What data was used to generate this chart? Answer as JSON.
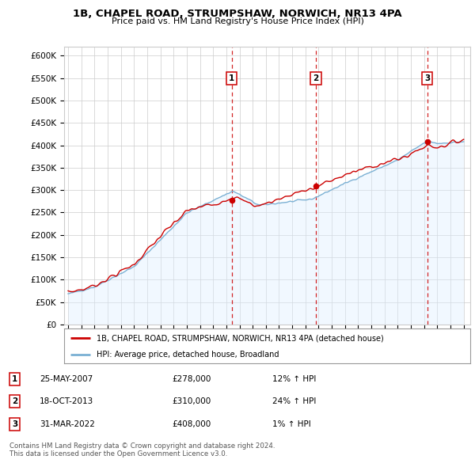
{
  "title1": "1B, CHAPEL ROAD, STRUMPSHAW, NORWICH, NR13 4PA",
  "title2": "Price paid vs. HM Land Registry's House Price Index (HPI)",
  "sale_year_vals": [
    2007.4167,
    2013.7917,
    2022.25
  ],
  "sale_prices": [
    278000,
    310000,
    408000
  ],
  "sale_labels": [
    "1",
    "2",
    "3"
  ],
  "sale_hpi_pct": [
    "12%",
    "24%",
    "1%"
  ],
  "sale_date_labels": [
    "25-MAY-2007",
    "18-OCT-2013",
    "31-MAR-2022"
  ],
  "sale_price_labels": [
    "£278,000",
    "£310,000",
    "£408,000"
  ],
  "legend_line1": "1B, CHAPEL ROAD, STRUMPSHAW, NORWICH, NR13 4PA (detached house)",
  "legend_line2": "HPI: Average price, detached house, Broadland",
  "footer1": "Contains HM Land Registry data © Crown copyright and database right 2024.",
  "footer2": "This data is licensed under the Open Government Licence v3.0.",
  "price_line_color": "#cc0000",
  "hpi_line_color": "#7ab0d4",
  "hpi_fill_color": "#ddeeff",
  "grid_color": "#cccccc",
  "vline_color": "#cc0000",
  "bg_color": "#ffffff",
  "ylim": [
    0,
    620000
  ],
  "yticks": [
    0,
    50000,
    100000,
    150000,
    200000,
    250000,
    300000,
    350000,
    400000,
    450000,
    500000,
    550000,
    600000
  ],
  "xlim_start": 1994.7,
  "xlim_end": 2025.5
}
